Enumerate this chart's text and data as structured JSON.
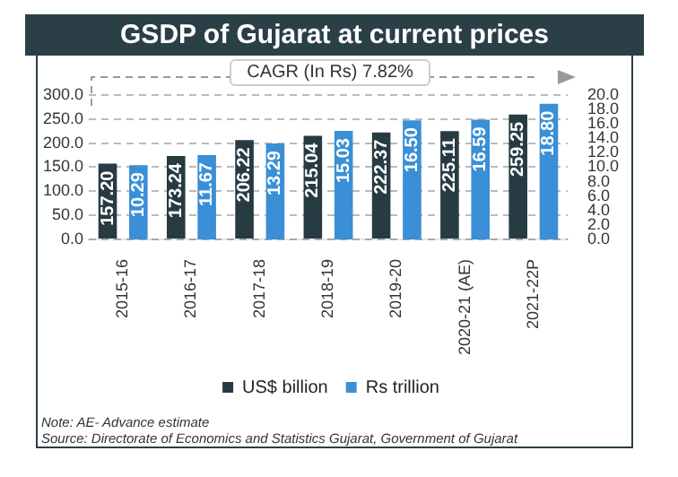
{
  "chart_data": {
    "type": "bar",
    "title": "GSDP  of Gujarat at current prices",
    "categories": [
      "2015-16",
      "2016-17",
      "2017-18",
      "2018-19",
      "2019-20",
      "2020-21 (AE)",
      "2021-22P"
    ],
    "series": [
      {
        "name": "US$ billion",
        "color": "#263b42",
        "values": [
          157.2,
          173.24,
          206.22,
          215.04,
          222.37,
          225.11,
          259.25
        ],
        "value_labels": [
          "157.20",
          "173.24",
          "206.22",
          "215.04",
          "222.37",
          "225.11",
          "259.25"
        ]
      },
      {
        "name": "Rs trillion",
        "color": "#3a8fd6",
        "axis": "y2",
        "values": [
          10.29,
          11.67,
          13.29,
          15.03,
          16.5,
          16.59,
          18.8
        ],
        "value_labels": [
          "10.29",
          "11.67",
          "13.29",
          "15.03",
          "16.50",
          "16.59",
          "18.80"
        ]
      }
    ],
    "ylim": [
      0,
      300
    ],
    "yticks": [
      {
        "value": 0,
        "label": "0.0"
      },
      {
        "value": 50,
        "label": "50.0"
      },
      {
        "value": 100,
        "label": "100.0"
      },
      {
        "value": 150,
        "label": "150.0"
      },
      {
        "value": 200,
        "label": "200.0"
      },
      {
        "value": 250,
        "label": "250.0"
      },
      {
        "value": 300,
        "label": "300.0"
      }
    ],
    "y2lim": [
      0,
      20
    ],
    "y2ticks": [
      {
        "value": 0,
        "label": "0.0"
      },
      {
        "value": 2,
        "label": "2.0"
      },
      {
        "value": 4,
        "label": "4.0"
      },
      {
        "value": 6,
        "label": "6.0"
      },
      {
        "value": 8,
        "label": "8.0"
      },
      {
        "value": 10,
        "label": "10.0"
      },
      {
        "value": 12,
        "label": "12.0"
      },
      {
        "value": 14,
        "label": "14.0"
      },
      {
        "value": 16,
        "label": "16.0"
      },
      {
        "value": 18,
        "label": "18.0"
      },
      {
        "value": 20,
        "label": "20.0"
      }
    ],
    "grid": "y",
    "legend": "bottom",
    "annotations": [
      "CAGR (In Rs) 7.82%",
      "Note: AE- Advance estimate",
      "Source: Directorate of Economics and Statistics Gujarat, Government of Gujarat"
    ]
  }
}
